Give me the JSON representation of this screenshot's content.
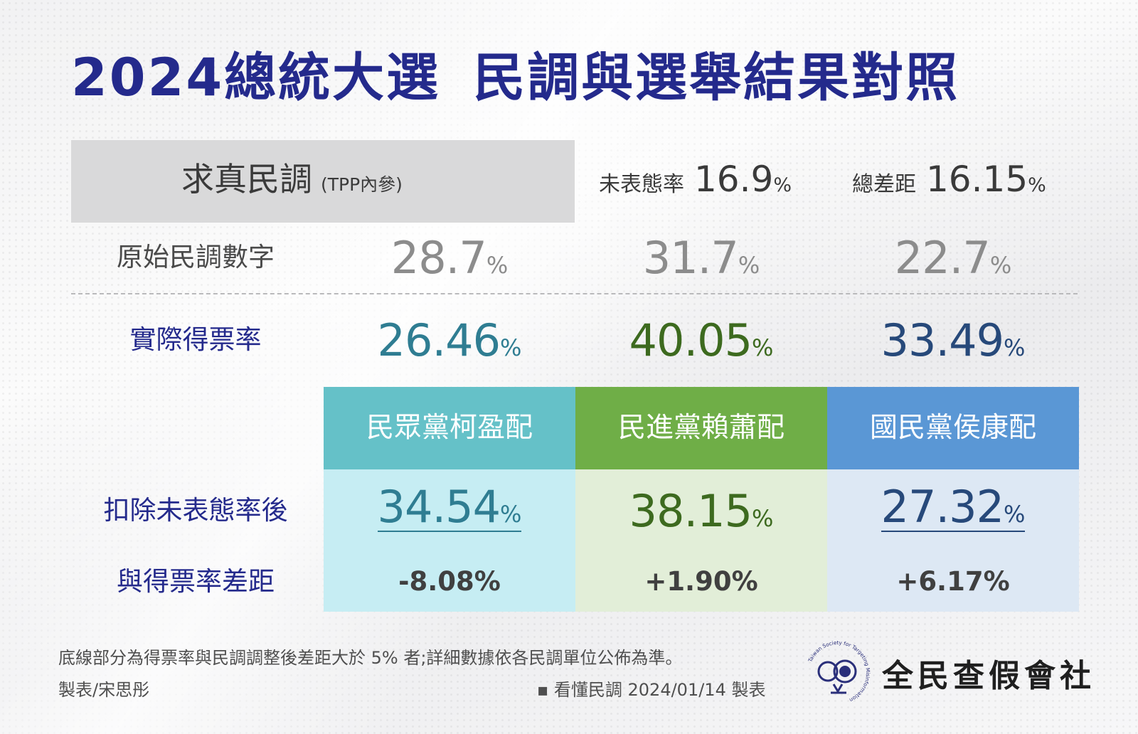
{
  "title": {
    "part1": "2024總統大選",
    "part2": "民調與選舉結果對照"
  },
  "poll": {
    "name": "求真民調",
    "sub": "(TPP內參)",
    "undecided_label": "未表態率",
    "undecided_value": "16.9",
    "total_gap_label": "總差距",
    "total_gap_value": "16.15",
    "pct": "%"
  },
  "rows": {
    "raw_label": "原始民調數字",
    "actual_label": "實際得票率",
    "adjusted_label": "扣除未表態率後",
    "diff_label": "與得票率差距"
  },
  "chart_data": {
    "type": "table",
    "title": "2024總統大選 民調與選舉結果對照",
    "categories": [
      "民眾黨柯盈配",
      "民進黨賴蕭配",
      "國民黨侯康配"
    ],
    "series": [
      {
        "name": "原始民調數字",
        "values": [
          28.7,
          31.7,
          22.7
        ]
      },
      {
        "name": "實際得票率",
        "values": [
          26.46,
          40.05,
          33.49
        ]
      },
      {
        "name": "扣除未表態率後",
        "values": [
          34.54,
          38.15,
          27.32
        ]
      },
      {
        "name": "與得票率差距",
        "values": [
          -8.08,
          1.9,
          6.17
        ]
      }
    ],
    "display": {
      "raw": [
        "28.7",
        "31.7",
        "22.7"
      ],
      "actual": [
        "26.46",
        "40.05",
        "33.49"
      ],
      "adjusted": [
        "34.54",
        "38.15",
        "27.32"
      ],
      "diff": [
        "-8.08%",
        "+1.90%",
        "+6.17%"
      ]
    },
    "undecided_rate": 16.9,
    "total_gap": 16.15
  },
  "colors": {
    "title": "#242a8c",
    "tpp_head": "#65c1c8",
    "tpp_body": "#c6edf3",
    "tpp_text": "#2f7d92",
    "dpp_head": "#6fae47",
    "dpp_body": "#e2eed8",
    "dpp_text": "#3d6a1f",
    "kmt_head": "#5a97d5",
    "kmt_body": "#dde8f4",
    "kmt_text": "#27497a",
    "raw_text": "#8c8c8c"
  },
  "footer": {
    "note": "底線部分為得票率與民調調整後差距大於 5% 者;詳細數據依各民調單位公佈為準。",
    "author": "製表/宋思彤",
    "credit": "▪ 看懂民調 2024/01/14 製表",
    "org": "全民查假會社",
    "logo_ring_text": "Taiwan Society for Targeting Misinformation"
  },
  "pct": "%"
}
